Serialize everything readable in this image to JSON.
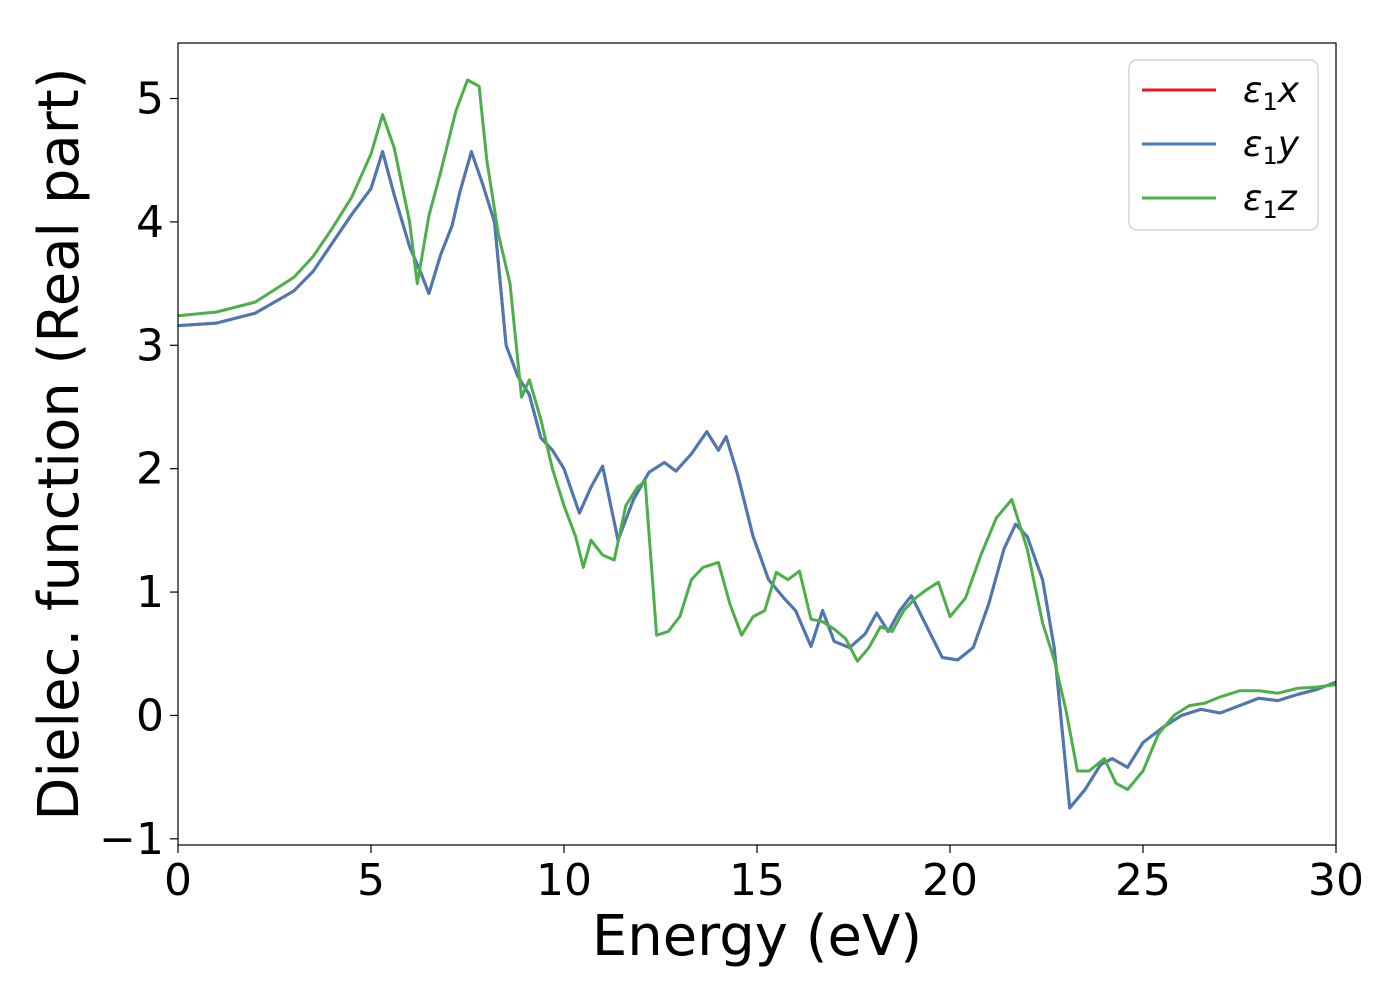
{
  "chart_data": {
    "type": "line",
    "title": "",
    "xlabel": "Energy (eV)",
    "ylabel": "Dielec. function (Real part)",
    "xlim": [
      0,
      30
    ],
    "ylim": [
      -1.05,
      5.45
    ],
    "xticks": [
      0,
      5,
      10,
      15,
      20,
      25,
      30
    ],
    "xtick_labels": [
      "0",
      "5",
      "10",
      "15",
      "20",
      "25",
      "30"
    ],
    "yticks": [
      -1,
      0,
      1,
      2,
      3,
      4,
      5
    ],
    "ytick_labels": [
      "−1",
      "0",
      "1",
      "2",
      "3",
      "4",
      "5"
    ],
    "grid": false,
    "legend_position": "top-right",
    "series": [
      {
        "name": "ε1x",
        "label_main": "ε",
        "label_sub": "1",
        "label_tail": "x",
        "color": "#e41a1c",
        "x": [
          0,
          1,
          2,
          3,
          3.5,
          4,
          4.5,
          5,
          5.3,
          5.6,
          6,
          6.3,
          6.5,
          6.8,
          7.1,
          7.3,
          7.6,
          7.9,
          8.2,
          8.5,
          8.8,
          9.1,
          9.4,
          9.7,
          10,
          10.4,
          10.7,
          11,
          11.4,
          11.8,
          12.2,
          12.6,
          12.9,
          13.3,
          13.7,
          14,
          14.2,
          14.5,
          14.9,
          15.3,
          15.7,
          16.0,
          16.4,
          16.7,
          17.0,
          17.4,
          17.8,
          18.1,
          18.4,
          18.7,
          19.0,
          19.4,
          19.8,
          20.2,
          20.6,
          21.0,
          21.4,
          21.7,
          22.0,
          22.4,
          22.7,
          23.1,
          23.5,
          23.9,
          24.2,
          24.6,
          25.0,
          25.5,
          26.0,
          26.5,
          27.0,
          27.5,
          28.0,
          28.5,
          29.0,
          29.5,
          30
        ],
        "y": [
          3.16,
          3.18,
          3.26,
          3.44,
          3.6,
          3.83,
          4.06,
          4.27,
          4.57,
          4.22,
          3.8,
          3.58,
          3.42,
          3.73,
          3.97,
          4.24,
          4.57,
          4.3,
          4.0,
          3.0,
          2.75,
          2.6,
          2.25,
          2.15,
          2.0,
          1.64,
          1.85,
          2.02,
          1.42,
          1.75,
          1.97,
          2.05,
          1.98,
          2.12,
          2.3,
          2.15,
          2.26,
          1.95,
          1.45,
          1.1,
          0.95,
          0.85,
          0.56,
          0.85,
          0.6,
          0.55,
          0.66,
          0.83,
          0.68,
          0.85,
          0.97,
          0.72,
          0.47,
          0.45,
          0.55,
          0.9,
          1.35,
          1.55,
          1.45,
          1.1,
          0.55,
          -0.75,
          -0.6,
          -0.4,
          -0.35,
          -0.42,
          -0.22,
          -0.1,
          0.0,
          0.05,
          0.02,
          0.08,
          0.14,
          0.12,
          0.17,
          0.21,
          0.27
        ]
      },
      {
        "name": "ε1y",
        "label_main": "ε",
        "label_sub": "1",
        "label_tail": "y",
        "color": "#4a7ab5",
        "x": [
          0,
          1,
          2,
          3,
          3.5,
          4,
          4.5,
          5,
          5.3,
          5.6,
          6,
          6.3,
          6.5,
          6.8,
          7.1,
          7.3,
          7.6,
          7.9,
          8.2,
          8.5,
          8.8,
          9.1,
          9.4,
          9.7,
          10,
          10.4,
          10.7,
          11,
          11.4,
          11.8,
          12.2,
          12.6,
          12.9,
          13.3,
          13.7,
          14,
          14.2,
          14.5,
          14.9,
          15.3,
          15.7,
          16.0,
          16.4,
          16.7,
          17.0,
          17.4,
          17.8,
          18.1,
          18.4,
          18.7,
          19.0,
          19.4,
          19.8,
          20.2,
          20.6,
          21.0,
          21.4,
          21.7,
          22.0,
          22.4,
          22.7,
          23.1,
          23.5,
          23.9,
          24.2,
          24.6,
          25.0,
          25.5,
          26.0,
          26.5,
          27.0,
          27.5,
          28.0,
          28.5,
          29.0,
          29.5,
          30
        ],
        "y": [
          3.16,
          3.18,
          3.26,
          3.44,
          3.6,
          3.83,
          4.06,
          4.27,
          4.57,
          4.22,
          3.8,
          3.58,
          3.42,
          3.73,
          3.97,
          4.24,
          4.57,
          4.3,
          4.0,
          3.0,
          2.75,
          2.6,
          2.25,
          2.15,
          2.0,
          1.64,
          1.85,
          2.02,
          1.42,
          1.75,
          1.97,
          2.05,
          1.98,
          2.12,
          2.3,
          2.15,
          2.26,
          1.95,
          1.45,
          1.1,
          0.95,
          0.85,
          0.56,
          0.85,
          0.6,
          0.55,
          0.66,
          0.83,
          0.68,
          0.85,
          0.97,
          0.72,
          0.47,
          0.45,
          0.55,
          0.9,
          1.35,
          1.55,
          1.45,
          1.1,
          0.55,
          -0.75,
          -0.6,
          -0.4,
          -0.35,
          -0.42,
          -0.22,
          -0.1,
          0.0,
          0.05,
          0.02,
          0.08,
          0.14,
          0.12,
          0.17,
          0.21,
          0.27
        ]
      },
      {
        "name": "ε1z",
        "label_main": "ε",
        "label_sub": "1",
        "label_tail": "z",
        "color": "#4daf4a",
        "x": [
          0,
          1,
          2,
          3,
          3.5,
          4,
          4.5,
          5,
          5.3,
          5.6,
          6,
          6.2,
          6.5,
          6.8,
          7.2,
          7.5,
          7.8,
          8.0,
          8.3,
          8.6,
          8.9,
          9.1,
          9.4,
          9.7,
          10,
          10.3,
          10.5,
          10.7,
          11,
          11.3,
          11.6,
          11.9,
          12.1,
          12.4,
          12.7,
          13.0,
          13.3,
          13.6,
          14.0,
          14.3,
          14.6,
          14.9,
          15.2,
          15.5,
          15.8,
          16.1,
          16.4,
          16.7,
          17.0,
          17.3,
          17.6,
          17.9,
          18.2,
          18.5,
          18.8,
          19.1,
          19.4,
          19.7,
          20.0,
          20.4,
          20.8,
          21.2,
          21.6,
          22.0,
          22.4,
          22.7,
          23.0,
          23.3,
          23.6,
          24.0,
          24.3,
          24.6,
          25.0,
          25.4,
          25.8,
          26.2,
          26.6,
          27.0,
          27.5,
          28.0,
          28.5,
          29.0,
          29.5,
          30
        ],
        "y": [
          3.24,
          3.27,
          3.35,
          3.55,
          3.72,
          3.95,
          4.2,
          4.55,
          4.87,
          4.6,
          4.0,
          3.5,
          4.05,
          4.4,
          4.9,
          5.15,
          5.1,
          4.5,
          3.9,
          3.5,
          2.58,
          2.72,
          2.4,
          2.0,
          1.7,
          1.45,
          1.2,
          1.42,
          1.3,
          1.26,
          1.7,
          1.85,
          1.9,
          0.65,
          0.68,
          0.8,
          1.1,
          1.2,
          1.24,
          0.9,
          0.65,
          0.8,
          0.85,
          1.16,
          1.1,
          1.17,
          0.78,
          0.76,
          0.7,
          0.62,
          0.44,
          0.55,
          0.72,
          0.68,
          0.85,
          0.95,
          1.02,
          1.08,
          0.8,
          0.95,
          1.3,
          1.6,
          1.75,
          1.35,
          0.75,
          0.45,
          0.05,
          -0.45,
          -0.45,
          -0.35,
          -0.55,
          -0.6,
          -0.45,
          -0.15,
          0.0,
          0.08,
          0.1,
          0.15,
          0.2,
          0.2,
          0.18,
          0.22,
          0.23,
          0.25
        ]
      }
    ]
  }
}
